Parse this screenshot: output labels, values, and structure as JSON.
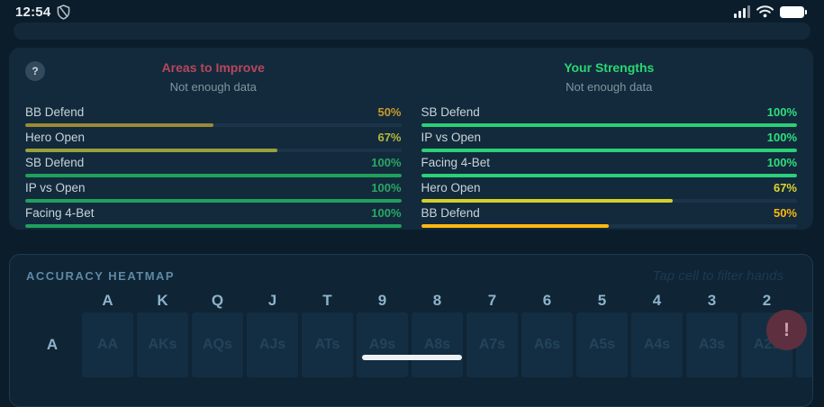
{
  "status_bar": {
    "time": "12:54"
  },
  "stats": {
    "left": {
      "title": "Areas to Improve",
      "title_color": "#b8475d",
      "subtitle": "Not enough data",
      "rows": [
        {
          "label": "BB Defend",
          "pct": "50%",
          "value": 50,
          "pct_color": "#c9992b",
          "bar_color": "#9c8a36"
        },
        {
          "label": "Hero Open",
          "pct": "67%",
          "value": 67,
          "pct_color": "#b5b83a",
          "bar_color": "#99a13c"
        },
        {
          "label": "SB Defend",
          "pct": "100%",
          "value": 100,
          "pct_color": "#2aa863",
          "bar_color": "#21a05c"
        },
        {
          "label": "IP vs Open",
          "pct": "100%",
          "value": 100,
          "pct_color": "#2aa863",
          "bar_color": "#21a05c"
        },
        {
          "label": "Facing 4-Bet",
          "pct": "100%",
          "value": 100,
          "pct_color": "#2aa863",
          "bar_color": "#21a05c"
        }
      ]
    },
    "right": {
      "title": "Your Strengths",
      "title_color": "#2bd673",
      "subtitle": "Not enough data",
      "rows": [
        {
          "label": "SB Defend",
          "pct": "100%",
          "value": 100,
          "pct_color": "#2fe07d",
          "bar_color": "#2bd077"
        },
        {
          "label": "IP vs Open",
          "pct": "100%",
          "value": 100,
          "pct_color": "#2fe07d",
          "bar_color": "#2bd077"
        },
        {
          "label": "Facing 4-Bet",
          "pct": "100%",
          "value": 100,
          "pct_color": "#2fe07d",
          "bar_color": "#2bd077"
        },
        {
          "label": "Hero Open",
          "pct": "67%",
          "value": 67,
          "pct_color": "#ddd52e",
          "bar_color": "#d5cf2b"
        },
        {
          "label": "BB Defend",
          "pct": "50%",
          "value": 50,
          "pct_color": "#ffb70f",
          "bar_color": "#fdb813"
        }
      ]
    },
    "help_label": "?"
  },
  "heatmap": {
    "title": "ACCURACY HEATMAP",
    "hint": "Tap cell to filter hands",
    "columns": [
      "A",
      "K",
      "Q",
      "J",
      "T",
      "9",
      "8",
      "7",
      "6",
      "5",
      "4",
      "3",
      "2"
    ],
    "rows": [
      {
        "label": "A",
        "cells": [
          "AA",
          "AKs",
          "AQs",
          "AJs",
          "ATs",
          "A9s",
          "A8s",
          "A7s",
          "A6s",
          "A5s",
          "A4s",
          "A3s",
          "A2s"
        ]
      }
    ]
  },
  "fab": {
    "label": "!"
  }
}
